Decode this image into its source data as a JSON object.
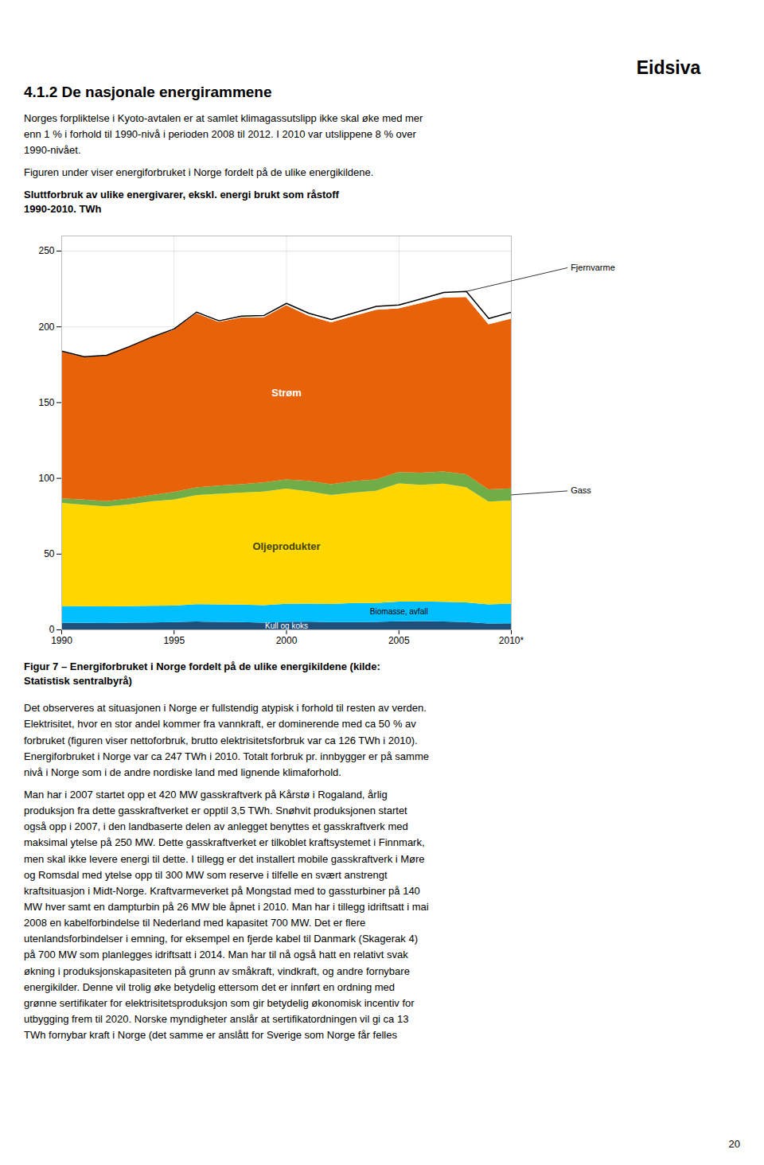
{
  "logo_text": "Eidsiva",
  "heading": "4.1.2 De nasjonale energirammene",
  "paragraphs": [
    "Norges forpliktelse i Kyoto-avtalen er at samlet klimagassutslipp ikke skal øke med mer\nenn 1 % i forhold til 1990-nivå i perioden 2008 til 2012. I 2010 var utslippene 8 % over\n1990-nivået.",
    "Figuren under viser energiforbruket i Norge fordelt på de ulike energikildene."
  ],
  "chart_data": {
    "type": "area",
    "stacked": true,
    "title": "Sluttforbruk av ulike energivarer, ekskl. energi brukt som råstoff",
    "subtitle": "1990-2010. TWh",
    "caption": "Figur 7 – Energiforbruket i Norge fordelt på de ulike energikildene (kilde:\nStatistisk sentralbyrå)",
    "x": [
      1990,
      1991,
      1992,
      1993,
      1994,
      1995,
      1996,
      1997,
      1998,
      1999,
      2000,
      2001,
      2002,
      2003,
      2004,
      2005,
      2006,
      2007,
      2008,
      2009,
      2010
    ],
    "series": [
      {
        "name": "Kull og koks",
        "color": "#1F4E79",
        "values": [
          4.5,
          4.3,
          4.2,
          4.4,
          4.6,
          4.8,
          5.2,
          5.0,
          4.9,
          4.5,
          5.0,
          5.1,
          4.8,
          4.9,
          5.0,
          5.4,
          5.5,
          5.2,
          4.9,
          4.0,
          4.1
        ]
      },
      {
        "name": "Biomasse, avfall",
        "color": "#00BFFF",
        "values": [
          11,
          11,
          11,
          11,
          11,
          11,
          11.5,
          11.5,
          11.5,
          11.5,
          12,
          12,
          12,
          12.5,
          12.5,
          13,
          13,
          13,
          13,
          12.5,
          13
        ]
      },
      {
        "name": "Oljeprodukter",
        "color": "#FFD700",
        "values": [
          68,
          67,
          66,
          67,
          69,
          70,
          72,
          73,
          74,
          75,
          76,
          74,
          72,
          73,
          74,
          78,
          77,
          78,
          76,
          68,
          68
        ]
      },
      {
        "name": "Gass",
        "color": "#70AD47",
        "values": [
          3,
          3.5,
          3.5,
          4,
          4,
          5,
          5,
          5.5,
          5.5,
          6,
          6,
          7,
          7,
          7.5,
          7.5,
          7.5,
          8,
          8,
          8.5,
          8,
          8
        ]
      },
      {
        "name": "Strøm",
        "color": "#E8620A",
        "values": [
          97,
          94,
          96,
          100,
          104,
          107,
          115,
          108,
          110,
          109,
          115,
          109,
          107,
          109,
          112,
          108,
          112,
          115,
          117,
          109,
          112
        ]
      },
      {
        "name": "Fjernvarme",
        "color": "#FFFFFF",
        "values": [
          0.5,
          0.5,
          0.5,
          0.5,
          0.6,
          0.8,
          1.0,
          1.0,
          1.2,
          1.5,
          1.5,
          1.8,
          2.0,
          2.3,
          2.5,
          2.5,
          3.0,
          3.5,
          4.0,
          4.0,
          4.5
        ]
      }
    ],
    "xlim": [
      1990,
      2010
    ],
    "ylim": [
      0,
      260
    ],
    "xticks": [
      1990,
      1995,
      2000,
      2005,
      {
        "value": 2010,
        "label": "2010*"
      }
    ],
    "yticks": [
      0,
      50,
      100,
      150,
      200,
      250
    ],
    "grid": true
  },
  "body_paragraphs": [
    "Det observeres at situasjonen i Norge er fullstendig atypisk i forhold til resten av verden.\nElektrisitet, hvor en stor andel kommer fra vannkraft, er dominerende med ca 50 % av\nforbruket (figuren viser nettoforbruk, brutto elektrisitetsforbruk var ca 126 TWh i 2010).\nEnergiforbruket i Norge var ca 247 TWh i 2010. Totalt forbruk pr. innbygger er på samme\nnivå i Norge som i de andre nordiske land med lignende klimaforhold.",
    "Man har i 2007 startet opp et 420 MW gasskraftverk på Kårstø i Rogaland, årlig\nproduksjon fra dette gasskraftverket er opptil 3,5 TWh. Snøhvit produksjonen startet\nogså opp i 2007, i den landbaserte delen av anlegget benyttes et gasskraftverk med\nmaksimal ytelse på 250 MW. Dette gasskraftverket er tilkoblet kraftsystemet i Finnmark,\nmen skal ikke levere energi til dette. I tillegg er det installert mobile gasskraftverk i Møre\nog Romsdal med ytelse opp til 300 MW som reserve i tilfelle en svært anstrengt\nkraftsituasjon i Midt-Norge. Kraftvarmeverket på Mongstad med to gassturbiner på 140\nMW hver samt en dampturbin på 26 MW ble åpnet i 2010. Man har i tillegg idriftsatt i mai\n2008 en kabelforbindelse til Nederland med kapasitet 700 MW. Det er flere\nutenlandsforbindelser i emning, for eksempel en fjerde kabel til Danmark (Skagerak 4)\npå 700 MW som planlegges idriftsatt i 2014. Man har til nå også hatt en relativt svak\nøkning i produksjonskapasiteten på grunn av småkraft, vindkraft, og andre fornybare\nenergikilder. Denne vil trolig øke betydelig ettersom det er innført en ordning med\ngrønne sertifikater for elektrisitetsproduksjon som gir betydelig økonomisk incentiv for\nutbygging frem til 2020. Norske myndigheter anslår at sertifikatordningen vil gi ca 13\nTWh fornybar kraft i Norge (det samme er anslått for Sverige som Norge får felles"
  ],
  "page_number": "20"
}
